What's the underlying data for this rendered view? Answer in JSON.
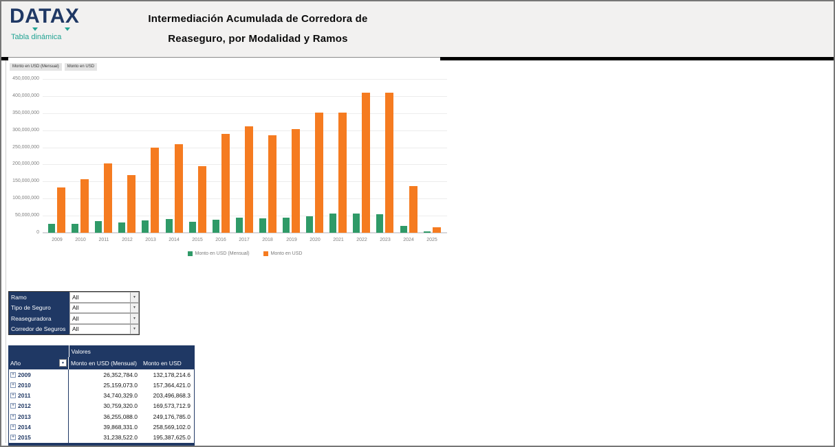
{
  "header": {
    "logo": "DATAX",
    "logo_subtitle": "Tabla dinámica",
    "title_line1": "Intermediación Acumulada de Corredora de",
    "title_line2": "Reaseguro, por Modalidad y Ramos"
  },
  "chart_field_buttons": [
    "Monto en USD (Mensual)",
    "Monto en USD"
  ],
  "chart_data": {
    "type": "bar",
    "title": "",
    "xlabel": "",
    "ylabel": "",
    "categories": [
      "2009",
      "2010",
      "2011",
      "2012",
      "2013",
      "2014",
      "2015",
      "2016",
      "2017",
      "2018",
      "2019",
      "2020",
      "2021",
      "2022",
      "2023",
      "2024",
      "2025"
    ],
    "series": [
      {
        "name": "Monto en USD (Mensual)",
        "color": "#2F9A68",
        "values": [
          26352784,
          25159073,
          34740329,
          30759320,
          36255088,
          39868331,
          31238522,
          39000000,
          45000000,
          42000000,
          44000000,
          49000000,
          57000000,
          57000000,
          55000000,
          20000000,
          5000000
        ]
      },
      {
        "name": "Monto en USD",
        "color": "#F57B20",
        "values": [
          132178215,
          157364421,
          203496868,
          169573713,
          249176785,
          258569102,
          195387625,
          289000000,
          311000000,
          285000000,
          303000000,
          352000000,
          351000000,
          410000000,
          410000000,
          136000000,
          17000000
        ]
      }
    ],
    "ylim": [
      0,
      450000000
    ],
    "ytick_step": 50000000,
    "yticks": [
      "0",
      "50,000,000",
      "100,000,000",
      "150,000,000",
      "200,000,000",
      "250,000,000",
      "300,000,000",
      "350,000,000",
      "400,000,000",
      "450,000,000"
    ],
    "grid": true,
    "legend_position": "bottom"
  },
  "filters": {
    "rows": [
      {
        "label": "Ramo",
        "value": "All"
      },
      {
        "label": "Tipo de Seguro",
        "value": "All"
      },
      {
        "label": "Reaseguradora",
        "value": "All"
      },
      {
        "label": "Corredor de Seguros",
        "value": "All"
      }
    ]
  },
  "pivot_table": {
    "values_label": "Valores",
    "row_field": "Año",
    "value_columns": [
      "Monto en USD (Mensual)",
      "Monto en USD"
    ],
    "rows": [
      {
        "year": "2009",
        "mensual": "26,352,784.0",
        "total": "132,178,214.6"
      },
      {
        "year": "2010",
        "mensual": "25,159,073.0",
        "total": "157,364,421.0"
      },
      {
        "year": "2011",
        "mensual": "34,740,329.0",
        "total": "203,496,868.3"
      },
      {
        "year": "2012",
        "mensual": "30,759,320.0",
        "total": "169,573,712.9"
      },
      {
        "year": "2013",
        "mensual": "36,255,088.0",
        "total": "249,176,785.0"
      },
      {
        "year": "2014",
        "mensual": "39,868,331.0",
        "total": "258,569,102.0"
      },
      {
        "year": "2015",
        "mensual": "31,238,522.0",
        "total": "195,387,625.0"
      }
    ]
  },
  "colors": {
    "navy": "#1F3864",
    "teal": "#21A393",
    "bar_green": "#2F9A68",
    "bar_orange": "#F57B20",
    "header_bg": "#F2F1F0",
    "axis_text": "#7F7F7F",
    "gridline": "#ECECEC"
  }
}
